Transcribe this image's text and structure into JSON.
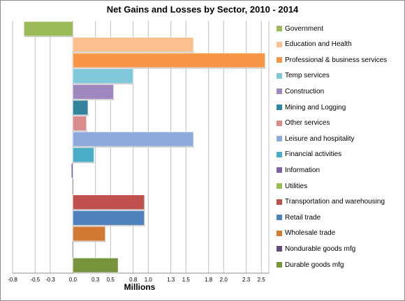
{
  "chart_data": {
    "type": "bar",
    "orientation": "horizontal",
    "title": "Net Gains and Losses by Sector, 2010 - 2014",
    "xlabel": "Millions",
    "ylabel": "",
    "xlim": [
      -0.8,
      2.6
    ],
    "grid": true,
    "legend_position": "right",
    "xticks": [
      "-0.8",
      "-0.5",
      "-0.3",
      "0.0",
      "0.3",
      "0.5",
      "0.8",
      "1.0",
      "1.3",
      "1.5",
      "1.8",
      "2.0",
      "2.3",
      "2.5"
    ],
    "categories": [
      "Government",
      "Education and Health",
      "Professional & business services",
      "Temp services",
      "Construction",
      "Mining and Logging",
      "Other services",
      "Leisure and hospitality",
      "Financial activities",
      "Information",
      "Utilities",
      "Transportation and warehousing",
      "Retail trade",
      "Wholesale trade",
      "Nondurable goods mfg",
      "Durable goods mfg"
    ],
    "values": [
      -0.65,
      1.6,
      2.55,
      0.8,
      0.54,
      0.2,
      0.18,
      1.6,
      0.28,
      -0.02,
      0.0,
      0.95,
      0.95,
      0.43,
      0.0,
      0.6
    ],
    "colors": [
      "#9bbb59",
      "#fac090",
      "#f79646",
      "#7fc7d9",
      "#9f88bd",
      "#31849b",
      "#d98c8c",
      "#8ea9db",
      "#4bacc6",
      "#8064a2",
      "#9bbb59",
      "#c0504d",
      "#4f81bd",
      "#d07a36",
      "#604a7b",
      "#77933c"
    ]
  }
}
